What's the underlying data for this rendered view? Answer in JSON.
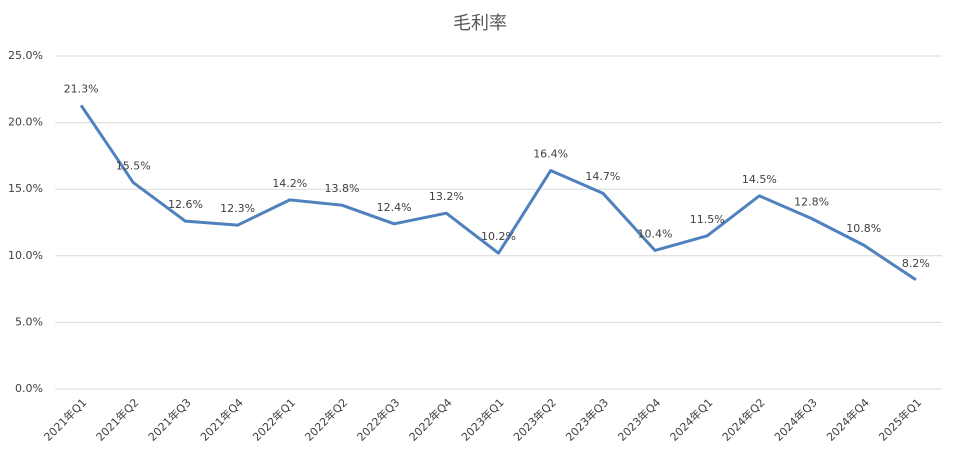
{
  "chart_data": {
    "type": "line",
    "title": "毛利率",
    "categories": [
      "2021年Q1",
      "2021年Q2",
      "2021年Q3",
      "2021年Q4",
      "2022年Q1",
      "2022年Q2",
      "2022年Q3",
      "2022年Q4",
      "2023年Q1",
      "2023年Q2",
      "2023年Q3",
      "2023年Q4",
      "2024年Q1",
      "2024年Q2",
      "2024年Q3",
      "2024年Q4",
      "2025年Q1"
    ],
    "series": [
      {
        "color": "#4f81bd",
        "values": [
          21.3,
          15.5,
          12.6,
          12.3,
          14.2,
          13.8,
          12.4,
          13.2,
          10.2,
          16.4,
          14.7,
          10.4,
          11.5,
          14.5,
          12.8,
          10.8,
          8.2
        ],
        "value_labels": [
          "21.3%",
          "15.5%",
          "12.6%",
          "12.3%",
          "14.2%",
          "13.8%",
          "12.4%",
          "13.2%",
          "10.2%",
          "16.4%",
          "14.7%",
          "10.4%",
          "11.5%",
          "14.5%",
          "12.8%",
          "10.8%",
          "8.2%"
        ]
      }
    ],
    "ylim": [
      0,
      25
    ],
    "yticks": [
      {
        "value": 0,
        "label": "0.0%"
      },
      {
        "value": 5,
        "label": "5.0%"
      },
      {
        "value": 10,
        "label": "10.0%"
      },
      {
        "value": 15,
        "label": "15.0%"
      },
      {
        "value": 20,
        "label": "20.0%"
      },
      {
        "value": 25,
        "label": "25.0%"
      }
    ],
    "grid": true
  }
}
